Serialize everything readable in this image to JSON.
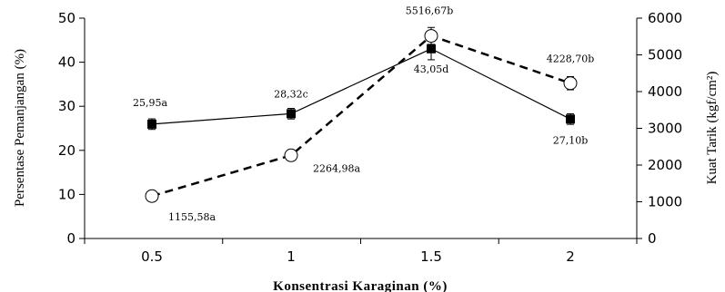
{
  "chart_data": {
    "type": "line",
    "title": "",
    "xlabel": "Konsentrasi Karaginan (%)",
    "ylabel_left": "Persentase Pemanjangan (%)",
    "ylabel_right": "Kuat Tarik (kgf/cm²)",
    "x": [
      "0.5",
      "1",
      "1.5",
      "2"
    ],
    "ylim_left": [
      0,
      50
    ],
    "yticks_left": [
      "0",
      "10",
      "20",
      "30",
      "40",
      "50"
    ],
    "ylim_right": [
      0,
      6000
    ],
    "yticks_right": [
      "0",
      "1000",
      "2000",
      "3000",
      "4000",
      "5000",
      "6000"
    ],
    "grid": false,
    "legend": "none",
    "series": [
      {
        "axis": "left",
        "style": "solid",
        "marker": "filled-square",
        "values": [
          25.95,
          28.32,
          43.05,
          27.1
        ],
        "errors": [
          1.2,
          1.2,
          2.5,
          1.2
        ],
        "labels": [
          "25,95a",
          "28,32c",
          "43,05d",
          "27,10b"
        ]
      },
      {
        "axis": "right",
        "style": "dashed",
        "marker": "open-circle",
        "values": [
          1155.58,
          2264.98,
          5516.67,
          4228.7
        ],
        "errors": [
          0,
          0,
          230,
          180
        ],
        "labels": [
          "1155,58a",
          "2264,98a",
          "5516,67b",
          "4228,70b"
        ]
      }
    ]
  }
}
